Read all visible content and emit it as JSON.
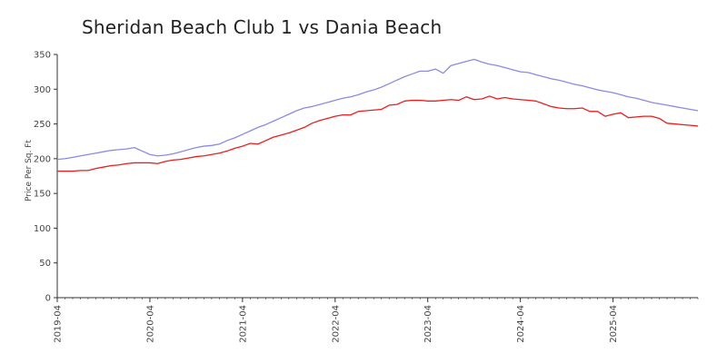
{
  "chart_data": {
    "type": "line",
    "title": "Sheridan Beach Club 1 vs Dania Beach",
    "ylabel": "Price Per Sq. Ft",
    "xlabel": "",
    "ylim": [
      0,
      350
    ],
    "yticks": [
      0,
      50,
      100,
      150,
      200,
      250,
      300,
      350
    ],
    "xlim": [
      "2019-04",
      "2026-03"
    ],
    "xticks": [
      "2019-04",
      "2020-04",
      "2021-04",
      "2022-04",
      "2023-04",
      "2024-04",
      "2025-04"
    ],
    "grid": false,
    "legend": "none",
    "x": [
      "2019-04",
      "2019-05",
      "2019-06",
      "2019-07",
      "2019-08",
      "2019-09",
      "2019-10",
      "2019-11",
      "2019-12",
      "2020-01",
      "2020-02",
      "2020-03",
      "2020-04",
      "2020-05",
      "2020-06",
      "2020-07",
      "2020-08",
      "2020-09",
      "2020-10",
      "2020-11",
      "2020-12",
      "2021-01",
      "2021-02",
      "2021-03",
      "2021-04",
      "2021-05",
      "2021-06",
      "2021-07",
      "2021-08",
      "2021-09",
      "2021-10",
      "2021-11",
      "2021-12",
      "2022-01",
      "2022-02",
      "2022-03",
      "2022-04",
      "2022-05",
      "2022-06",
      "2022-07",
      "2022-08",
      "2022-09",
      "2022-10",
      "2022-11",
      "2022-12",
      "2023-01",
      "2023-02",
      "2023-03",
      "2023-04",
      "2023-05",
      "2023-06",
      "2023-07",
      "2023-08",
      "2023-09",
      "2023-10",
      "2023-11",
      "2023-12",
      "2024-01",
      "2024-02",
      "2024-03",
      "2024-04",
      "2024-05",
      "2024-06",
      "2024-07",
      "2024-08",
      "2024-09",
      "2024-10",
      "2024-11",
      "2024-12",
      "2025-01",
      "2025-02",
      "2025-03",
      "2025-04",
      "2025-05",
      "2025-06",
      "2025-07",
      "2025-08",
      "2025-09",
      "2025-10",
      "2025-11",
      "2025-12",
      "2026-01",
      "2026-02",
      "2026-03"
    ],
    "series": [
      {
        "color": "#8a8ae8",
        "values": [
          199,
          200,
          202,
          204,
          206,
          208,
          210,
          212,
          213,
          214,
          216,
          211,
          206,
          204,
          205,
          207,
          210,
          213,
          216,
          218,
          219,
          221,
          226,
          230,
          235,
          240,
          245,
          249,
          254,
          259,
          264,
          269,
          273,
          275,
          278,
          281,
          284,
          287,
          289,
          292,
          296,
          299,
          303,
          308,
          313,
          318,
          322,
          326,
          326,
          329,
          323,
          334,
          337,
          340,
          343,
          339,
          336,
          334,
          331,
          328,
          325,
          324,
          321,
          318,
          315,
          313,
          310,
          307,
          305,
          302,
          299,
          297,
          295,
          292,
          289,
          287,
          284,
          281,
          279,
          277,
          275,
          273,
          271,
          269
        ]
      },
      {
        "color": "#ee1c1c",
        "values": [
          182,
          182,
          182,
          183,
          183,
          186,
          188,
          190,
          191,
          193,
          194,
          194,
          194,
          193,
          196,
          198,
          199,
          201,
          203,
          204,
          206,
          208,
          211,
          215,
          218,
          222,
          221,
          226,
          231,
          234,
          237,
          241,
          245,
          251,
          255,
          258,
          261,
          263,
          263,
          268,
          269,
          270,
          271,
          277,
          278,
          283,
          284,
          284,
          283,
          283,
          284,
          285,
          284,
          289,
          285,
          286,
          290,
          286,
          288,
          286,
          285,
          284,
          283,
          279,
          275,
          273,
          272,
          272,
          273,
          268,
          268,
          261,
          264,
          266,
          259,
          260,
          261,
          261,
          258,
          251,
          250,
          249,
          248,
          247
        ]
      }
    ]
  }
}
